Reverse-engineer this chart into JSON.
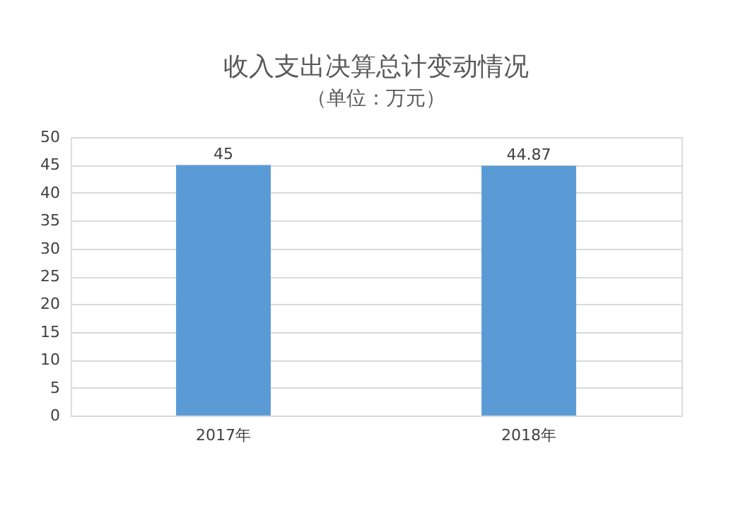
{
  "chart_data": {
    "type": "bar",
    "title": "收入支出决算总计变动情况",
    "subtitle": "（单位：万元）",
    "categories": [
      "2017年",
      "2018年"
    ],
    "values": [
      45,
      44.87
    ],
    "color": "#5b9bd5",
    "ylim": [
      0,
      50
    ],
    "yticks": [
      0,
      5,
      10,
      15,
      20,
      25,
      30,
      35,
      40,
      45,
      50
    ],
    "grid": "y",
    "data_labels": true
  }
}
